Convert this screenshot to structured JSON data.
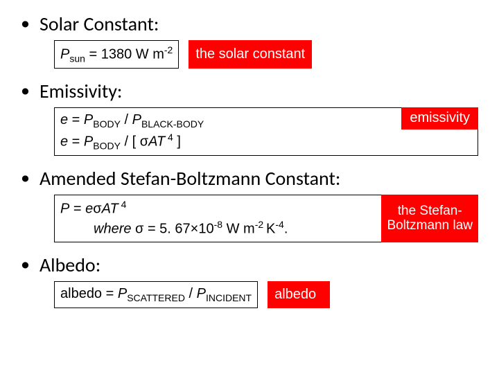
{
  "sections": {
    "solar": {
      "heading": "Solar Constant:",
      "formula_html": "<span class='ital'>P</span><span class='sub'>sun</span> = 1380 W m<span class='sup'>-2</span>",
      "label": "the solar constant"
    },
    "emissivity": {
      "heading": "Emissivity:",
      "line1_html": "<span class='ital'>e</span> = <span class='ital'>P</span><span class='sub'>BODY</span> / <span class='ital'>P</span><span class='sub'>BLACK-BODY</span>",
      "line2_html": "<span class='ital'>e</span> = <span class='ital'>P</span><span class='sub'>BODY</span> /  [ &sigma;<span class='ital'>AT</span><span class='sup'> 4</span> ]",
      "label": "emissivity"
    },
    "stefan": {
      "heading": "Amended Stefan-Boltzmann Constant:",
      "line1_html": "<span class='ital'>P</span> = <span class='ital'>e</span>&sigma;<span class='ital'>AT</span><span class='sup'> 4</span>",
      "line2_html": "<span class='ital'>where</span> &sigma; = 5. 67&times;10<span class='sup'>-8</span> W m<span class='sup'>-2 </span>K<span class='sup'>-4</span>.",
      "label_line1": "the Stefan-",
      "label_line2": "Boltzmann law"
    },
    "albedo": {
      "heading": "Albedo:",
      "formula_html": "albedo = <span class='ital'>P</span><span class='sub'>SCATTERED</span> / <span class='ital'>P</span><span class='sub'>INCIDENT</span>",
      "label": "albedo"
    }
  },
  "colors": {
    "label_bg": "#ff0000",
    "label_fg": "#ffffff",
    "border": "#000000",
    "text": "#000000",
    "bg": "#ffffff"
  }
}
